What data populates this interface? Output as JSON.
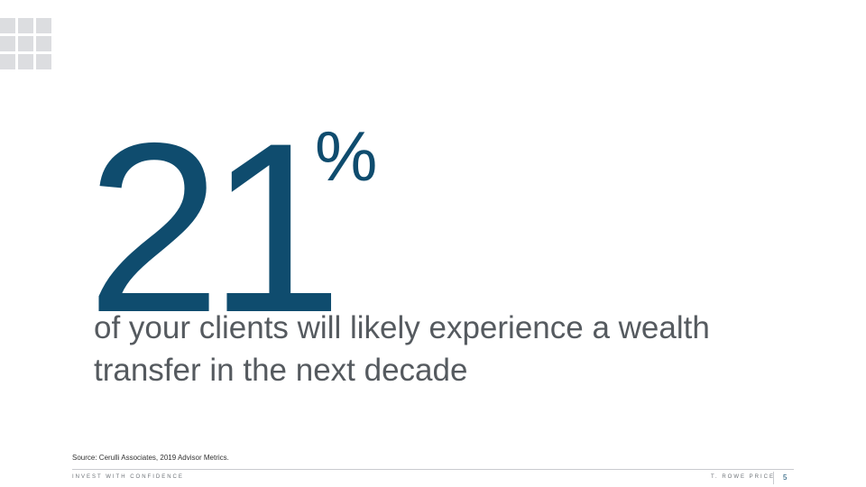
{
  "slide": {
    "stat_value": "21",
    "stat_unit": "%",
    "caption": "of your clients will likely experience a wealth transfer in the next decade"
  },
  "footer": {
    "source": "Source: Cerulli Associates, 2019 Advisor Metrics.",
    "tagline": "INVEST WITH CONFIDENCE",
    "brand": "T. ROWE PRICE",
    "page_number": "5"
  },
  "colors": {
    "accent": "#0f4c6e",
    "body_text": "#555a5f",
    "logo_cells": "#dcdde0"
  }
}
